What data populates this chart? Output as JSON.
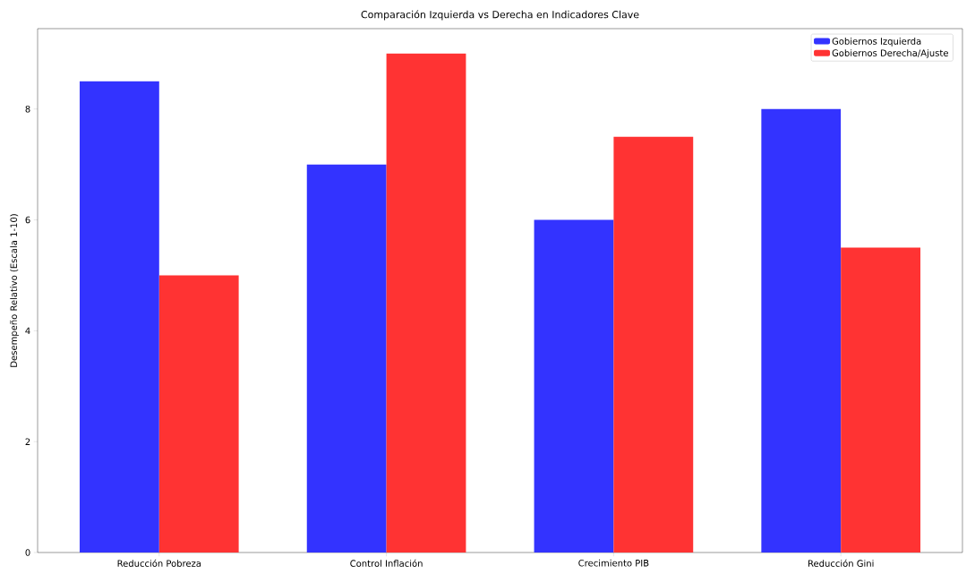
{
  "chart_data": {
    "type": "bar",
    "title": "Comparación Izquierda vs Derecha en Indicadores Clave",
    "ylabel": "Desempeño Relativo (Escala 1-10)",
    "categories": [
      "Reducción Pobreza",
      "Control Inflación",
      "Crecimiento PIB",
      "Reducción Gini"
    ],
    "series": [
      {
        "name": "Gobiernos Izquierda",
        "color": "#3333ff",
        "values": [
          8.5,
          7,
          6,
          8
        ]
      },
      {
        "name": "Gobiernos Derecha/Ajuste",
        "color": "#ff3333",
        "values": [
          5,
          9,
          7.5,
          5.5
        ]
      }
    ],
    "ylim": [
      0,
      9.45
    ],
    "yticks": [
      0,
      2,
      4,
      6,
      8
    ],
    "legend": "top right",
    "grid": false
  }
}
